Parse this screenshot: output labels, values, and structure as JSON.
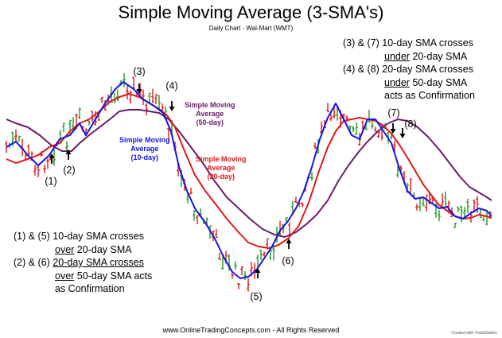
{
  "chart_data": {
    "type": "line",
    "title": "Simple Moving Average (3-SMA's)",
    "subtitle": "Daily Chart - Wal-Mart (WMT)",
    "series": [
      {
        "name": "Simple Moving Average (10-day)",
        "color": "#1515e8"
      },
      {
        "name": "Simple Moving Average (20-day)",
        "color": "#e01818"
      },
      {
        "name": "Simple Moving Average (50-day)",
        "color": "#6b1b6b"
      }
    ],
    "price_colors": {
      "up": "#1e9a1e",
      "down": "#e01818"
    },
    "signals": [
      "(1)",
      "(2)",
      "(3)",
      "(4)",
      "(5)",
      "(6)",
      "(7)",
      "(8)"
    ],
    "notes": {
      "right": {
        "l1": "(3) & (7)  10-day SMA crosses",
        "l2_u": "under",
        "l2": " 20-day SMA",
        "l3": "(4) & (8)  20-day SMA crosses",
        "l4_u": "under",
        "l4": " 50-day SMA",
        "l5": "acts as Confirmation"
      },
      "left": {
        "l1": "(1) & (5)  10-day SMA crosses",
        "l2_u": "over",
        "l2": " 20-day SMA",
        "l3_a": "(2) & (6) ",
        "l3_u": "20-day SMA crosses",
        "l4_u": "over",
        "l4": " 50-day SMA acts",
        "l5": "as Confirmation"
      }
    },
    "ma_labels": {
      "ma50_l1": "Simple Moving",
      "ma50_l2": "Average",
      "ma50_l3": "(50-day)",
      "ma10_l1": "Simple Moving",
      "ma10_l2": "Average",
      "ma10_l3": "(10-day)",
      "ma20_l1": "Simple Moving",
      "ma20_l2": "Average",
      "ma20_l3": "(20-day)"
    },
    "footer": "www.OnlineTradingConcepts.com - All Rights Reserved",
    "credit": "Created with TradeStation"
  }
}
